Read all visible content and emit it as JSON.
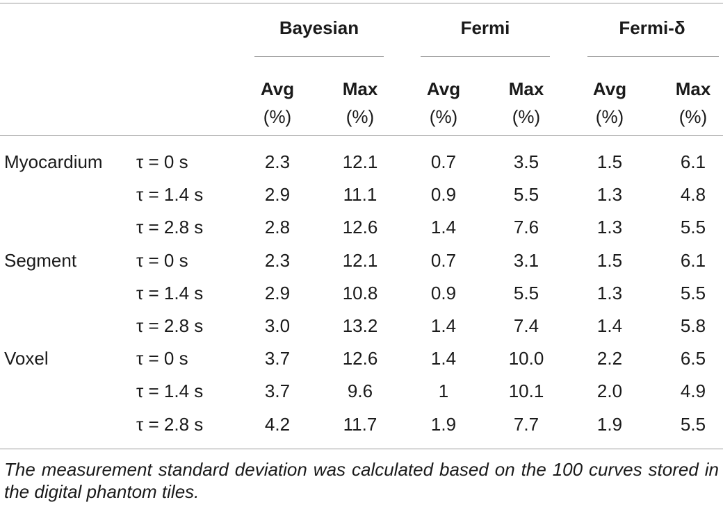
{
  "groups": [
    "Bayesian",
    "Fermi",
    "Fermi-δ"
  ],
  "subheaders": [
    {
      "title": "Avg",
      "unit": "(%)"
    },
    {
      "title": "Max",
      "unit": "(%)"
    },
    {
      "title": "Avg",
      "unit": "(%)"
    },
    {
      "title": "Max",
      "unit": "(%)"
    },
    {
      "title": "Avg",
      "unit": "(%)"
    },
    {
      "title": "Max",
      "unit": "(%)"
    }
  ],
  "rows": [
    {
      "label": "Myocardium",
      "tau": "τ = 0 s",
      "values": [
        "2.3",
        "12.1",
        "0.7",
        "3.5",
        "1.5",
        "6.1"
      ]
    },
    {
      "label": "",
      "tau": "τ = 1.4 s",
      "values": [
        "2.9",
        "11.1",
        "0.9",
        "5.5",
        "1.3",
        "4.8"
      ]
    },
    {
      "label": "",
      "tau": "τ = 2.8 s",
      "values": [
        "2.8",
        "12.6",
        "1.4",
        "7.6",
        "1.3",
        "5.5"
      ]
    },
    {
      "label": "Segment",
      "tau": "τ = 0 s",
      "values": [
        "2.3",
        "12.1",
        "0.7",
        "3.1",
        "1.5",
        "6.1"
      ]
    },
    {
      "label": "",
      "tau": "τ = 1.4 s",
      "values": [
        "2.9",
        "10.8",
        "0.9",
        "5.5",
        "1.3",
        "5.5"
      ]
    },
    {
      "label": "",
      "tau": "τ = 2.8 s",
      "values": [
        "3.0",
        "13.2",
        "1.4",
        "7.4",
        "1.4",
        "5.8"
      ]
    },
    {
      "label": "Voxel",
      "tau": "τ = 0 s",
      "values": [
        "3.7",
        "12.6",
        "1.4",
        "10.0",
        "2.2",
        "6.5"
      ]
    },
    {
      "label": "",
      "tau": "τ = 1.4 s",
      "values": [
        "3.7",
        "9.6",
        "1",
        "10.1",
        "2.0",
        "4.9"
      ]
    },
    {
      "label": "",
      "tau": "τ = 2.8 s",
      "values": [
        "4.2",
        "11.7",
        "1.9",
        "7.7",
        "1.9",
        "5.5"
      ]
    }
  ],
  "footnote": "The measurement standard deviation was calculated based on the 100 curves stored in the digital phantom tiles."
}
